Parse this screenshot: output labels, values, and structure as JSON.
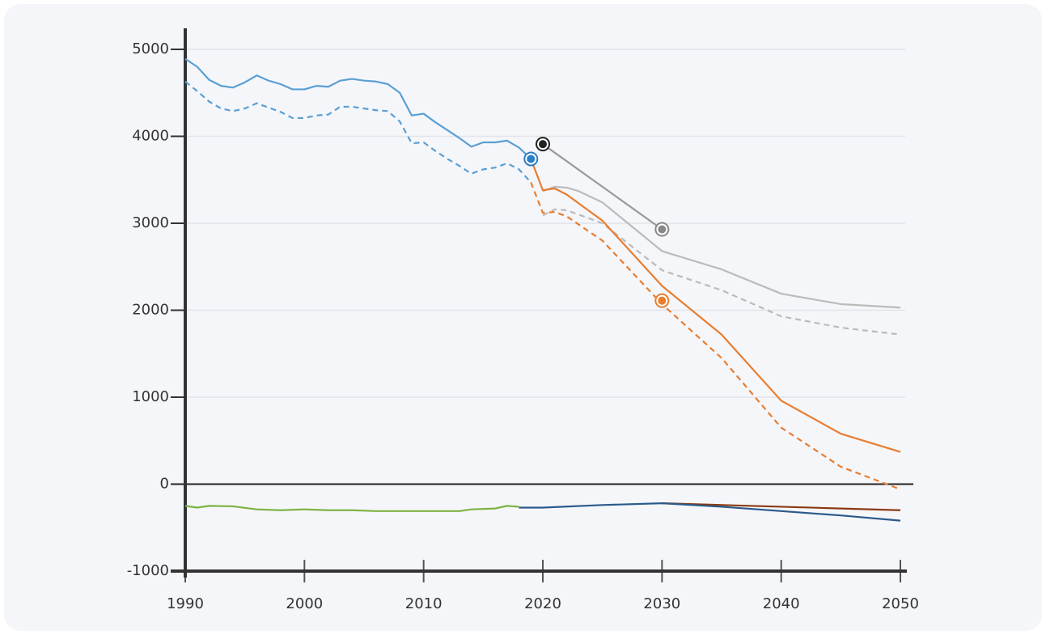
{
  "chart_data": {
    "type": "line",
    "xlim": [
      1990,
      2050
    ],
    "xticks": [
      1990,
      2000,
      2010,
      2020,
      2030,
      2040,
      2050
    ],
    "ylim": [
      -1000,
      5000
    ],
    "yticks": [
      -1000,
      0,
      1000,
      2000,
      3000,
      4000,
      5000
    ],
    "grid": true,
    "series": [
      {
        "color": "#5a9fd4",
        "dashed": false,
        "x": [
          1990,
          1991,
          1992,
          1993,
          1994,
          1995,
          1996,
          1997,
          1998,
          1999,
          2000,
          2001,
          2002,
          2003,
          2004,
          2005,
          2006,
          2007,
          2008,
          2009,
          2010,
          2011,
          2012,
          2013,
          2014,
          2015,
          2016,
          2017,
          2018,
          2019
        ],
        "values": [
          4890,
          4800,
          4650,
          4580,
          4560,
          4620,
          4700,
          4640,
          4600,
          4540,
          4540,
          4580,
          4570,
          4640,
          4660,
          4640,
          4630,
          4600,
          4500,
          4240,
          4260,
          4160,
          4070,
          3980,
          3880,
          3930,
          3930,
          3950,
          3870,
          3740
        ]
      },
      {
        "color": "#5a9fd4",
        "dashed": true,
        "x": [
          1990,
          1991,
          1992,
          1993,
          1994,
          1995,
          1996,
          1997,
          1998,
          1999,
          2000,
          2001,
          2002,
          2003,
          2004,
          2005,
          2006,
          2007,
          2008,
          2009,
          2010,
          2011,
          2012,
          2013,
          2014,
          2015,
          2016,
          2017,
          2018,
          2019
        ],
        "values": [
          4630,
          4520,
          4400,
          4320,
          4290,
          4320,
          4380,
          4330,
          4280,
          4210,
          4210,
          4240,
          4250,
          4340,
          4340,
          4320,
          4300,
          4290,
          4170,
          3920,
          3930,
          3830,
          3740,
          3660,
          3570,
          3620,
          3640,
          3690,
          3620,
          3470
        ]
      },
      {
        "color": "#bbbbbb",
        "dashed": false,
        "x": [
          2020,
          2021,
          2022,
          2023,
          2025,
          2030,
          2035,
          2040,
          2045,
          2050
        ],
        "values": [
          3370,
          3420,
          3410,
          3370,
          3240,
          2680,
          2470,
          2190,
          2070,
          2030
        ]
      },
      {
        "color": "#bbbbbb",
        "dashed": true,
        "x": [
          2020,
          2021,
          2022,
          2025,
          2030,
          2035,
          2040,
          2045,
          2050
        ],
        "values": [
          3090,
          3160,
          3150,
          3000,
          2460,
          2230,
          1930,
          1800,
          1720
        ]
      },
      {
        "color": "#e87d2e",
        "dashed": false,
        "x": [
          2019,
          2020,
          2021,
          2022,
          2025,
          2030,
          2035,
          2040,
          2045,
          2050
        ],
        "values": [
          3740,
          3380,
          3400,
          3330,
          3030,
          2280,
          1720,
          960,
          580,
          370
        ]
      },
      {
        "color": "#e87d2e",
        "dashed": true,
        "x": [
          2019,
          2020,
          2021,
          2022,
          2025,
          2030,
          2035,
          2040,
          2045,
          2050
        ],
        "values": [
          3470,
          3120,
          3130,
          3080,
          2800,
          2070,
          1450,
          650,
          200,
          -60
        ]
      },
      {
        "color": "#999999",
        "dashed": false,
        "x": [
          2020,
          2030
        ],
        "values": [
          3910,
          2930
        ]
      },
      {
        "color": "#7cb342",
        "dashed": false,
        "x": [
          1990,
          1991,
          1992,
          1994,
          1996,
          1998,
          2000,
          2002,
          2004,
          2006,
          2008,
          2010,
          2013,
          2014,
          2016,
          2017,
          2018
        ],
        "values": [
          -250,
          -270,
          -250,
          -255,
          -290,
          -300,
          -290,
          -300,
          -300,
          -310,
          -310,
          -310,
          -310,
          -290,
          -280,
          -250,
          -260
        ]
      },
      {
        "color": "#8b3a10",
        "dashed": false,
        "x": [
          2030,
          2035,
          2040,
          2045,
          2050
        ],
        "values": [
          -220,
          -240,
          -260,
          -280,
          -300
        ]
      },
      {
        "color": "#2a5a8a",
        "dashed": false,
        "x": [
          2018,
          2020,
          2025,
          2030,
          2035,
          2040,
          2045,
          2050
        ],
        "values": [
          -270,
          -270,
          -240,
          -220,
          -260,
          -310,
          -360,
          -420
        ]
      }
    ],
    "points": [
      {
        "x": 2019,
        "value": 3740,
        "color": "#2f7fc4"
      },
      {
        "x": 2020,
        "value": 3910,
        "color": "#222222"
      },
      {
        "x": 2030,
        "value": 2930,
        "color": "#888888"
      },
      {
        "x": 2030,
        "value": 2110,
        "color": "#e87d2e"
      }
    ]
  }
}
